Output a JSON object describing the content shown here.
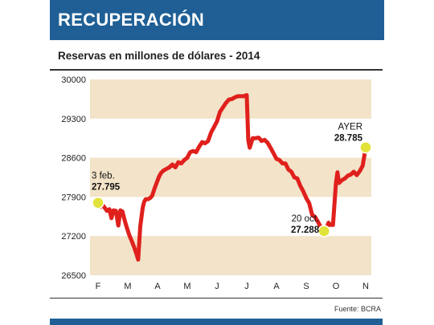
{
  "header": {
    "title": "RECUPERACIÓN"
  },
  "source": "Fuente: BCRA",
  "colors": {
    "brand": "#1f5f95",
    "band": "#f2e3c9",
    "line": "#e0201c",
    "marker": "#e2e33a"
  },
  "chart_data": {
    "type": "line",
    "title": "Reservas en millones de dólares - 2014",
    "ylim": [
      26500,
      30000
    ],
    "yticks": [
      30000,
      29300,
      28600,
      27900,
      27200,
      26500
    ],
    "months": [
      "F",
      "M",
      "A",
      "M",
      "J",
      "J",
      "A",
      "S",
      "O",
      "N"
    ],
    "grid": "alternating horizontal bands",
    "series": [
      {
        "x": [
          0.0,
          0.08,
          0.15,
          0.22,
          0.3,
          0.38,
          0.45,
          0.52,
          0.6,
          0.68,
          0.75,
          0.82,
          0.88,
          0.95,
          1.05,
          1.12,
          1.2,
          1.28,
          1.35,
          1.42,
          1.5,
          1.55,
          1.6,
          1.68,
          1.75,
          1.82,
          1.9,
          1.97,
          2.05,
          2.12,
          2.2,
          2.3,
          2.4,
          2.5,
          2.6,
          2.7,
          2.8,
          2.9,
          3.0,
          3.1,
          3.2,
          3.3,
          3.4,
          3.5,
          3.6,
          3.7,
          3.8,
          3.9,
          4.0,
          4.1,
          4.2,
          4.3,
          4.4,
          4.5,
          4.6,
          4.7,
          4.8,
          4.9,
          5.0,
          5.05,
          5.1,
          5.2,
          5.3,
          5.4,
          5.5,
          5.6,
          5.7,
          5.8,
          5.9,
          6.0,
          6.1,
          6.2,
          6.3,
          6.4,
          6.5,
          6.6,
          6.7,
          6.8,
          6.9,
          7.0,
          7.1,
          7.2,
          7.3,
          7.4,
          7.5,
          7.6,
          7.7,
          7.75,
          7.8,
          7.9,
          8.0,
          8.05,
          8.1,
          8.2,
          8.3,
          8.4,
          8.5,
          8.6,
          8.7,
          8.8,
          8.9,
          9.0
        ],
        "y": [
          27795,
          27720,
          27760,
          27710,
          27650,
          27680,
          27520,
          27660,
          27650,
          27390,
          27660,
          27640,
          27510,
          27380,
          27220,
          27130,
          27020,
          26900,
          26780,
          27370,
          27700,
          27810,
          27860,
          27860,
          27880,
          27920,
          28050,
          28150,
          28260,
          28330,
          28370,
          28400,
          28430,
          28480,
          28430,
          28520,
          28500,
          28560,
          28600,
          28700,
          28720,
          28700,
          28800,
          28880,
          28860,
          28900,
          29050,
          29150,
          29250,
          29420,
          29500,
          29580,
          29640,
          29650,
          29680,
          29700,
          29700,
          29700,
          29720,
          28920,
          28780,
          28950,
          28950,
          28960,
          28900,
          28920,
          28870,
          28780,
          28680,
          28580,
          28560,
          28500,
          28500,
          28390,
          28350,
          28250,
          28230,
          28100,
          28000,
          27880,
          27790,
          27580,
          27540,
          27450,
          27350,
          27288,
          27370,
          27440,
          27400,
          27400,
          28150,
          28340,
          28150,
          28200,
          28230,
          28280,
          28300,
          28350,
          28290,
          28360,
          28460,
          28785
        ]
      }
    ],
    "annotations": [
      {
        "label": "3 feb.",
        "value": "27.795",
        "x": 0.0,
        "y": 27795
      },
      {
        "label": "20 oct.",
        "value": "27.288",
        "x": 7.6,
        "y": 27288
      },
      {
        "label": "AYER",
        "value": "28.785",
        "x": 9.0,
        "y": 28785
      }
    ]
  }
}
